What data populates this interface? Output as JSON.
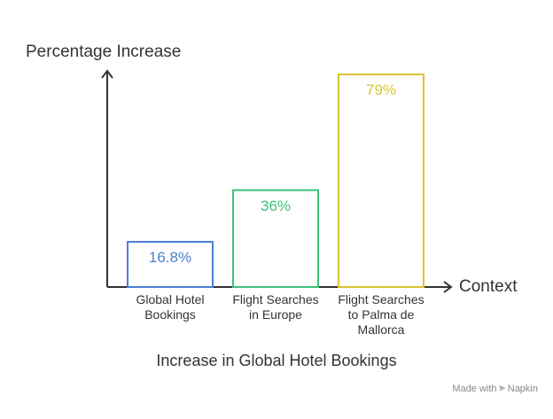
{
  "chart_data": {
    "type": "bar",
    "categories": [
      "Global Hotel Bookings",
      "Flight Searches in Europe",
      "Flight Searches to Palma de Mallorca"
    ],
    "category_lines": [
      [
        "Global Hotel",
        "Bookings"
      ],
      [
        "Flight Searches",
        "in Europe"
      ],
      [
        "Flight Searches",
        "to Palma de",
        "Mallorca"
      ]
    ],
    "values": [
      16.8,
      36,
      79
    ],
    "value_labels": [
      "16.8%",
      "36%",
      "79%"
    ],
    "colors": [
      "#4a7fd4",
      "#3cc07a",
      "#d9c531"
    ],
    "ylabel": "Percentage Increase",
    "xlabel": "Context",
    "caption": "Increase in Global Hotel Bookings",
    "ylim": [
      0,
      79
    ],
    "grid": false
  },
  "footer": {
    "prefix": "Made with",
    "brand": "Napkin",
    "icon": "napkin-logo-icon"
  }
}
